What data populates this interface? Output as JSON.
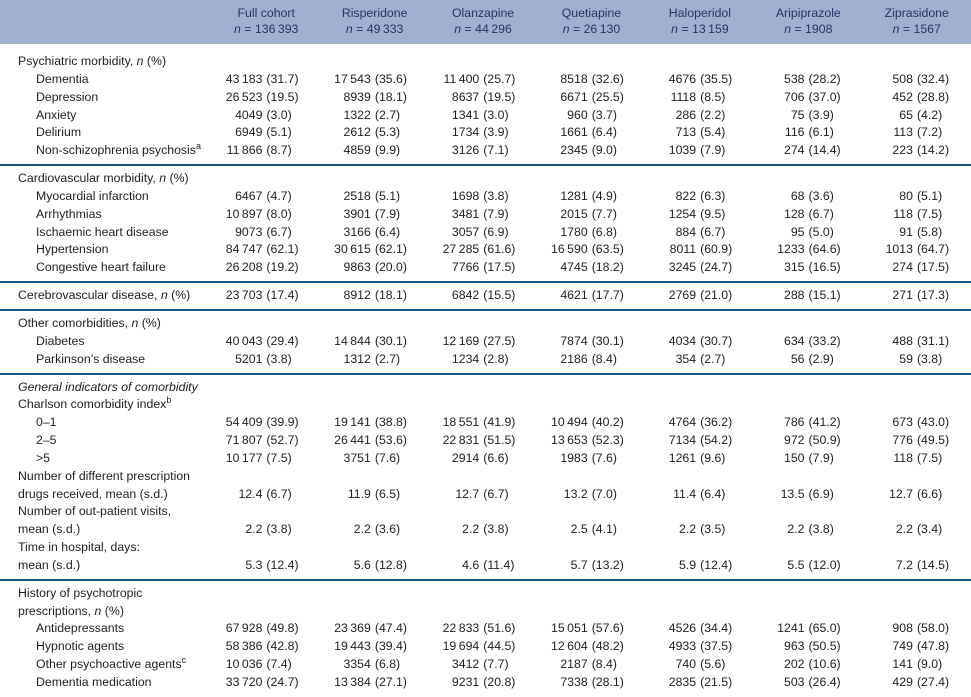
{
  "table": {
    "colors": {
      "header_band": "#a0b0d0",
      "header_text": "#2a3166",
      "rule_line": "#16527f",
      "body_text": "#1f1f1f"
    },
    "header": {
      "columns": [
        {
          "name": "Full cohort",
          "n": "*n* = 136 393"
        },
        {
          "name": "Risperidone",
          "n": "*n* = 49 333"
        },
        {
          "name": "Olanzapine",
          "n": "*n* = 44 296"
        },
        {
          "name": "Quetiapine",
          "n": "*n* = 26 130"
        },
        {
          "name": "Haloperidol",
          "n": "*n* = 13 159"
        },
        {
          "name": "Aripiprazole",
          "n": "*n* = 1908"
        },
        {
          "name": "Ziprasidone",
          "n": "*n* = 1567"
        }
      ]
    },
    "rows": [
      {
        "type": "section",
        "label": "Psychiatric morbidity, *n* (%)"
      },
      {
        "type": "item",
        "indent": true,
        "label": "Dementia",
        "values": [
          "43 183 (31.7)",
          "17 543 (35.6)",
          "11 400 (25.7)",
          "8518 (32.6)",
          "4676 (35.5)",
          "538 (28.2)",
          "508 (32.4)"
        ]
      },
      {
        "type": "item",
        "indent": true,
        "label": "Depression",
        "values": [
          "26 523 (19.5)",
          "8939 (18.1)",
          "8637 (19.5)",
          "6671 (25.5)",
          "1118 (8.5)",
          "706 (37.0)",
          "452 (28.8)"
        ]
      },
      {
        "type": "item",
        "indent": true,
        "label": "Anxiety",
        "values": [
          "4049 (3.0)",
          "1322 (2.7)",
          "1341 (3.0)",
          "960 (3.7)",
          "286 (2.2)",
          "75 (3.9)",
          "65 (4.2)"
        ]
      },
      {
        "type": "item",
        "indent": true,
        "label": "Delirium",
        "values": [
          "6949 (5.1)",
          "2612 (5.3)",
          "1734 (3.9)",
          "1661 (6.4)",
          "713 (5.4)",
          "116 (6.1)",
          "113 (7.2)"
        ]
      },
      {
        "type": "item",
        "indent": true,
        "label": "Non-schizophrenia psychosis^a^",
        "values": [
          "11 866 (8.7)",
          "4859 (9.9)",
          "3126 (7.1)",
          "2345 (9.0)",
          "1039 (7.9)",
          "274 (14.4)",
          "223 (14.2)"
        ]
      },
      {
        "type": "rule"
      },
      {
        "type": "section",
        "label": "Cardiovascular morbidity, *n* (%)"
      },
      {
        "type": "item",
        "indent": true,
        "label": "Myocardial infarction",
        "values": [
          "6467 (4.7)",
          "2518 (5.1)",
          "1698 (3.8)",
          "1281 (4.9)",
          "822 (6.3)",
          "68 (3.6)",
          "80 (5.1)"
        ]
      },
      {
        "type": "item",
        "indent": true,
        "label": "Arrhythmias",
        "values": [
          "10 897 (8.0)",
          "3901 (7.9)",
          "3481 (7.9)",
          "2015 (7.7)",
          "1254 (9.5)",
          "128 (6.7)",
          "118 (7.5)"
        ]
      },
      {
        "type": "item",
        "indent": true,
        "label": "Ischaemic heart disease",
        "values": [
          "9073 (6.7)",
          "3166 (6.4)",
          "3057 (6.9)",
          "1780 (6.8)",
          "884 (6.7)",
          "95 (5.0)",
          "91 (5.8)"
        ]
      },
      {
        "type": "item",
        "indent": true,
        "label": "Hypertension",
        "values": [
          "84 747 (62.1)",
          "30 615 (62.1)",
          "27 285 (61.6)",
          "16 590 (63.5)",
          "8011 (60.9)",
          "1233 (64.6)",
          "1013 (64.7)"
        ]
      },
      {
        "type": "item",
        "indent": true,
        "label": "Congestive heart failure",
        "values": [
          "26 208 (19.2)",
          "9863 (20.0)",
          "7766 (17.5)",
          "4745 (18.2)",
          "3245 (24.7)",
          "315 (16.5)",
          "274 (17.5)"
        ]
      },
      {
        "type": "rule"
      },
      {
        "type": "item",
        "indent": false,
        "label": "Cerebrovascular disease, *n* (%)",
        "values": [
          "23 703 (17.4)",
          "8912 (18.1)",
          "6842 (15.5)",
          "4621 (17.7)",
          "2769 (21.0)",
          "288 (15.1)",
          "271 (17.3)"
        ]
      },
      {
        "type": "rule"
      },
      {
        "type": "section",
        "label": "Other comorbidities, *n* (%)"
      },
      {
        "type": "item",
        "indent": true,
        "label": "Diabetes",
        "values": [
          "40 043 (29.4)",
          "14 844 (30.1)",
          "12 169 (27.5)",
          "7874 (30.1)",
          "4034 (30.7)",
          "634 (33.2)",
          "488 (31.1)"
        ]
      },
      {
        "type": "item",
        "indent": true,
        "label": "Parkinson’s disease",
        "values": [
          "5201 (3.8)",
          "1312 (2.7)",
          "1234 (2.8)",
          "2186 (8.4)",
          "354 (2.7)",
          "56 (2.9)",
          "59 (3.8)"
        ]
      },
      {
        "type": "rule"
      },
      {
        "type": "section",
        "label": "*General indicators of comorbidity*"
      },
      {
        "type": "section",
        "label": "Charlson comorbidity index^b^"
      },
      {
        "type": "item",
        "indent": true,
        "label": "0–1",
        "values": [
          "54 409 (39.9)",
          "19 141 (38.8)",
          "18 551 (41.9)",
          "10 494 (40.2)",
          "4764 (36.2)",
          "786 (41.2)",
          "673 (43.0)"
        ]
      },
      {
        "type": "item",
        "indent": true,
        "label": "2–5",
        "values": [
          "71 807 (52.7)",
          "26 441 (53.6)",
          "22 831 (51.5)",
          "13 653 (52.3)",
          "7134 (54.2)",
          "972 (50.9)",
          "776 (49.5)"
        ]
      },
      {
        "type": "item",
        "indent": true,
        "label": ">5",
        "values": [
          "10 177 (7.5)",
          "3751 (7.6)",
          "2914 (6.6)",
          "1983 (7.6)",
          "1261 (9.6)",
          "150 (7.9)",
          "118 (7.5)"
        ]
      },
      {
        "type": "section",
        "label": "Number of different prescription"
      },
      {
        "type": "item",
        "indent": false,
        "label": "drugs received, mean (s.d.)",
        "values": [
          "12.4 (6.7)",
          "11.9 (6.5)",
          "12.7 (6.7)",
          "13.2 (7.0)",
          "11.4 (6.4)",
          "13.5 (6.9)",
          "12.7 (6.6)"
        ]
      },
      {
        "type": "section",
        "label": "Number of out-patient visits,"
      },
      {
        "type": "item",
        "indent": false,
        "label": "mean (s.d.)",
        "values": [
          "2.2 (3.8)",
          "2.2 (3.6)",
          "2.2 (3.8)",
          "2.5 (4.1)",
          "2.2 (3.5)",
          "2.2 (3.8)",
          "2.2 (3.4)"
        ]
      },
      {
        "type": "section",
        "label": "Time in hospital, days:"
      },
      {
        "type": "item",
        "indent": false,
        "label": "mean (s.d.)",
        "values": [
          "5.3 (12.4)",
          "5.6 (12.8)",
          "4.6 (11.4)",
          "5.7 (13.2)",
          "5.9 (12.4)",
          "5.5 (12.0)",
          "7.2 (14.5)"
        ]
      },
      {
        "type": "rule"
      },
      {
        "type": "section",
        "label": "History of psychotropic"
      },
      {
        "type": "section",
        "label": "prescriptions, *n* (%)"
      },
      {
        "type": "item",
        "indent": true,
        "label": "Antidepressants",
        "values": [
          "67 928 (49.8)",
          "23 369 (47.4)",
          "22 833 (51.6)",
          "15 051 (57.6)",
          "4526 (34.4)",
          "1241 (65.0)",
          "908 (58.0)"
        ]
      },
      {
        "type": "item",
        "indent": true,
        "label": "Hypnotic agents",
        "values": [
          "58 386 (42.8)",
          "19 443 (39.4)",
          "19 694 (44.5)",
          "12 604 (48.2)",
          "4933 (37.5)",
          "963 (50.5)",
          "749 (47.8)"
        ]
      },
      {
        "type": "item",
        "indent": true,
        "label": "Other psychoactive agents^c^",
        "values": [
          "10 036 (7.4)",
          "3354 (6.8)",
          "3412 (7.7)",
          "2187 (8.4)",
          "740 (5.6)",
          "202 (10.6)",
          "141 (9.0)"
        ]
      },
      {
        "type": "item",
        "indent": true,
        "label": "Dementia medication",
        "values": [
          "33 720 (24.7)",
          "13 384 (27.1)",
          "9231 (20.8)",
          "7338 (28.1)",
          "2835 (21.5)",
          "503 (26.4)",
          "429 (27.4)"
        ]
      }
    ]
  }
}
